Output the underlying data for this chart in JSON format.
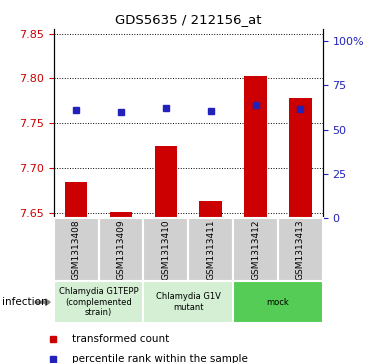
{
  "title": "GDS5635 / 212156_at",
  "samples": [
    "GSM1313408",
    "GSM1313409",
    "GSM1313410",
    "GSM1313411",
    "GSM1313412",
    "GSM1313413"
  ],
  "red_values": [
    7.685,
    7.652,
    7.725,
    7.664,
    7.803,
    7.778
  ],
  "blue_values": [
    7.765,
    7.763,
    7.767,
    7.764,
    7.77,
    7.766
  ],
  "ylim_left": [
    7.645,
    7.855
  ],
  "yticks_left": [
    7.65,
    7.7,
    7.75,
    7.8,
    7.85
  ],
  "yticks_right": [
    0,
    25,
    50,
    75,
    100
  ],
  "ylim_right": [
    0,
    107
  ],
  "group_configs": [
    {
      "start": 0,
      "end": 1,
      "color": "#d4efd4",
      "label": "Chlamydia G1TEPP\n(complemented\nstrain)"
    },
    {
      "start": 2,
      "end": 3,
      "color": "#d4efd4",
      "label": "Chlamydia G1V\nmutant"
    },
    {
      "start": 4,
      "end": 5,
      "color": "#55cc55",
      "label": "mock"
    }
  ],
  "factor_label": "infection",
  "red_color": "#cc0000",
  "blue_color": "#2222bb",
  "left_axis_color": "#cc0000",
  "right_axis_color": "#2222bb",
  "bar_width": 0.5,
  "gray_box_color": "#d0d0d0",
  "legend_red_label": "transformed count",
  "legend_blue_label": "percentile rank within the sample"
}
